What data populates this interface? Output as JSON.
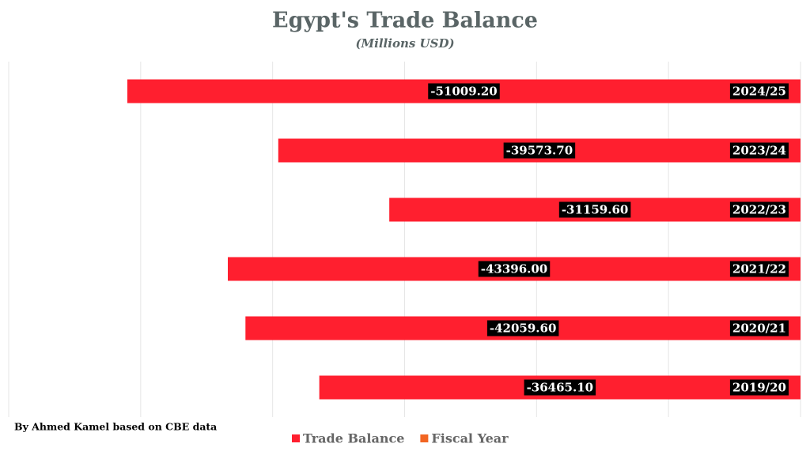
{
  "chart_data": {
    "type": "hbar",
    "title": "Egypt's Trade Balance",
    "subtitle": "(Millions USD)",
    "categories": [
      "2024/25",
      "2023/24",
      "2022/23",
      "2021/22",
      "2020/21",
      "2019/20"
    ],
    "series": [
      {
        "color": "#ff1f2f",
        "values": [
          -51009.2,
          -39573.7,
          -31159.6,
          -43396,
          -42059.6,
          -36465.1
        ],
        "value_labels": [
          "-51009.20",
          "-39573.70",
          "-31159.60",
          "-43396.00",
          "-42059.60",
          "-36465.10"
        ]
      }
    ],
    "xlim": [
      -60000,
      0
    ],
    "xticks": [
      -60000,
      -50000,
      -40000,
      -30000,
      -20000,
      -10000,
      0
    ],
    "grid": true,
    "legend": [
      {
        "name": "Trade Balance",
        "color": "#ff1f2f"
      },
      {
        "name": "Fiscal Year",
        "color": "#f26522"
      }
    ],
    "legend_position": "bottom",
    "source": "By Ahmed Kamel based on CBE data"
  }
}
